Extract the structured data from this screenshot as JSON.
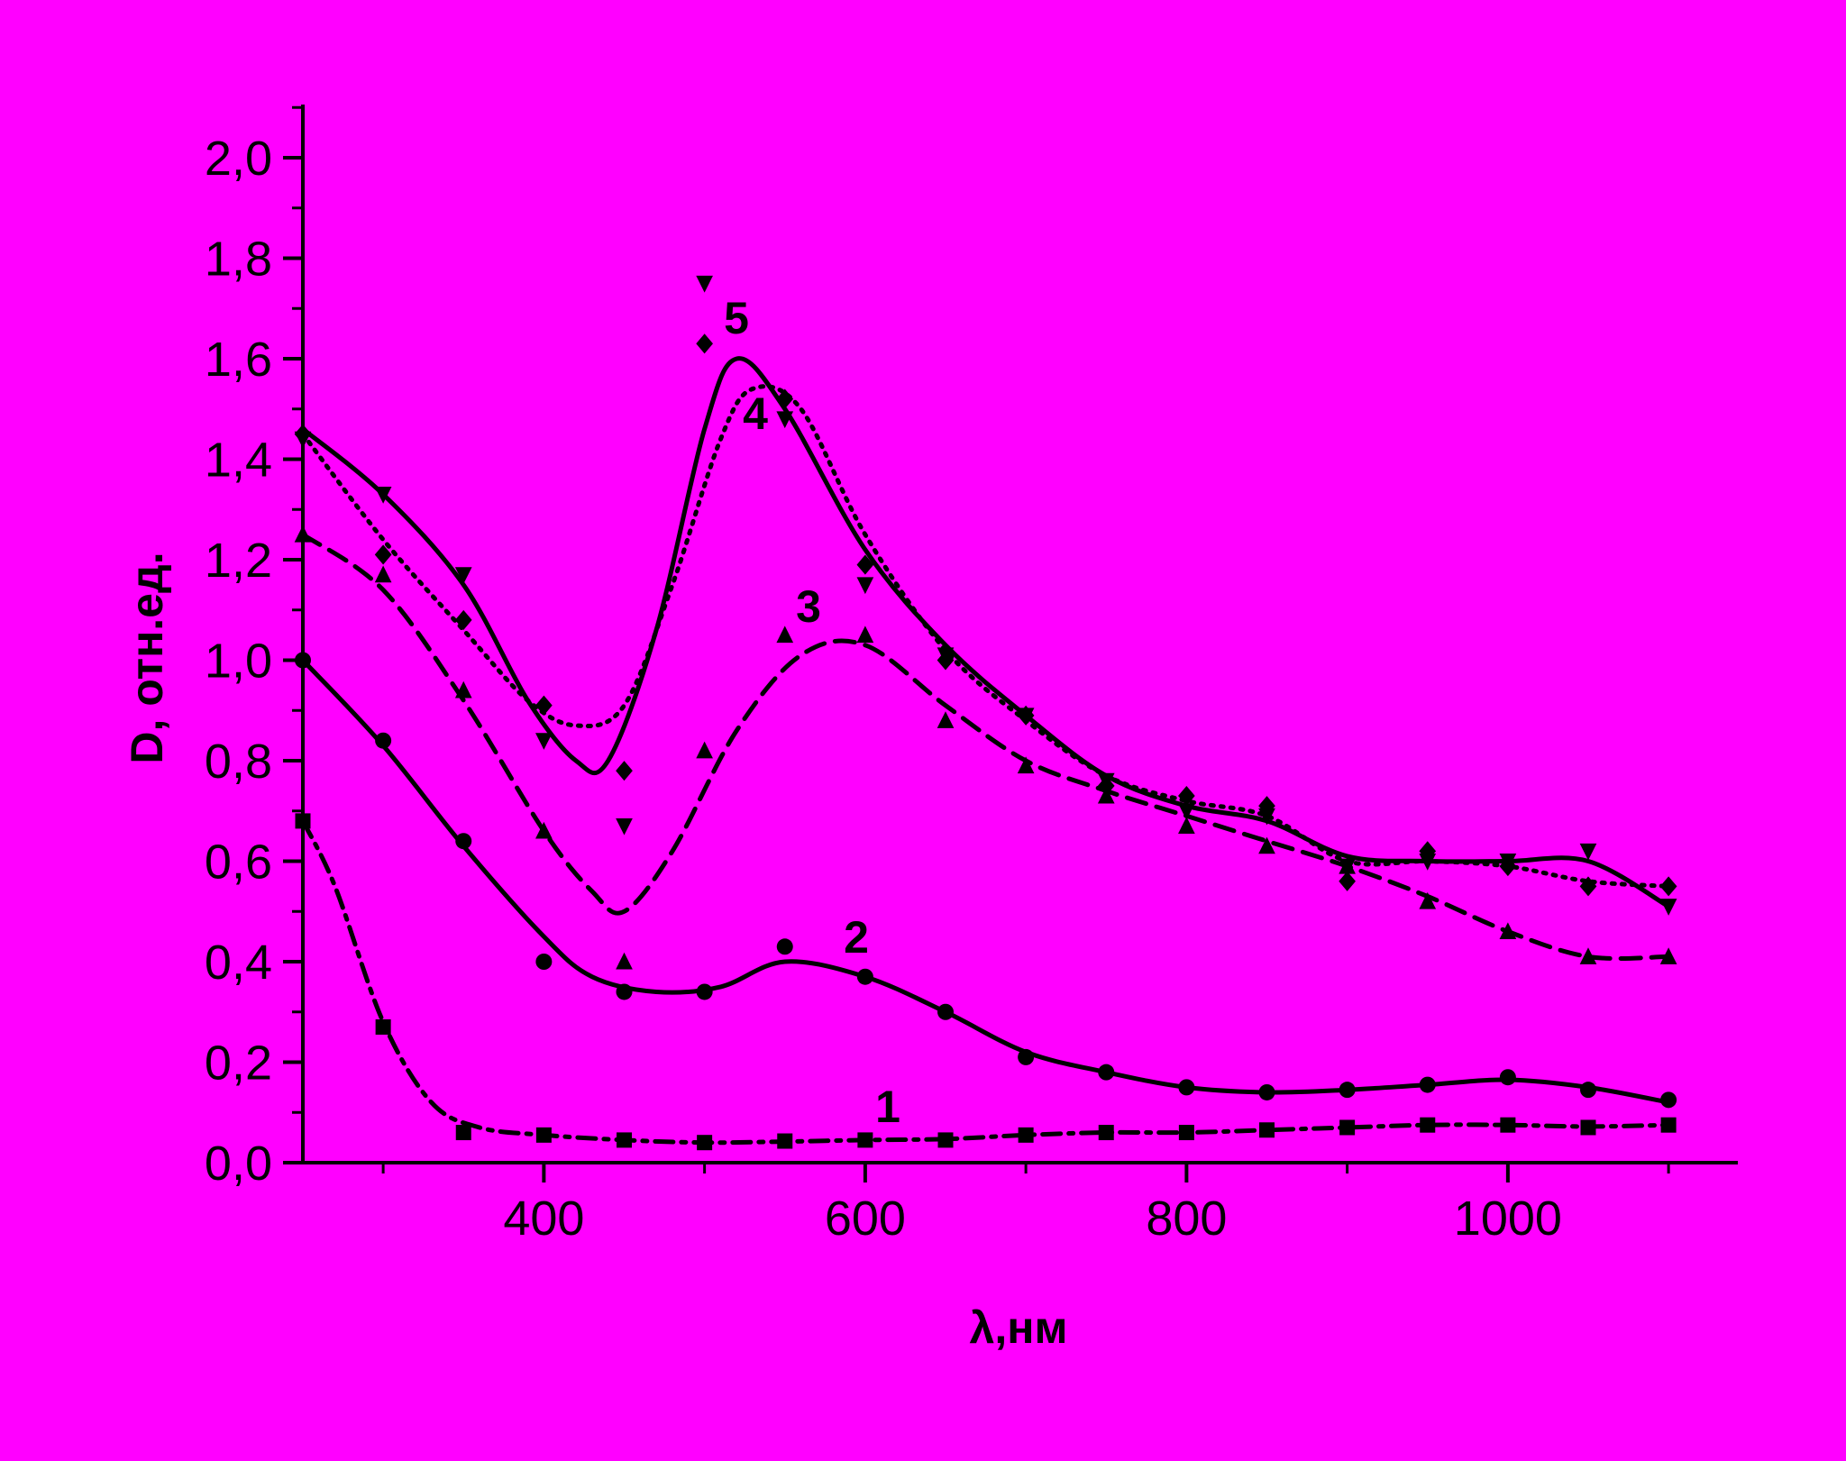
{
  "background_color": "#ff00ff",
  "ink_color": "#000000",
  "chart_data": {
    "type": "line",
    "xlabel": "λ,нм",
    "ylabel": "D, отн.ед.",
    "xlim": [
      250,
      1150
    ],
    "ylim": [
      0,
      2.1
    ],
    "x_ticks": [
      400,
      600,
      800,
      1000
    ],
    "x_tick_labels": [
      "400",
      "600",
      "800",
      "1000"
    ],
    "y_ticks": [
      0,
      0.2,
      0.4,
      0.6,
      0.8,
      1.0,
      1.2,
      1.4,
      1.6,
      1.8,
      2.0
    ],
    "y_tick_labels": [
      "0,0",
      "0,2",
      "0,4",
      "0,6",
      "0,8",
      "1,0",
      "1,2",
      "1,4",
      "1,6",
      "1,8",
      "2,0"
    ],
    "grid": false,
    "legend": "none",
    "series": [
      {
        "label": "1",
        "marker": "square",
        "line_style": "dash-dot",
        "points": [
          [
            250,
            0.68
          ],
          [
            300,
            0.27
          ],
          [
            350,
            0.06
          ],
          [
            400,
            0.055
          ],
          [
            450,
            0.045
          ],
          [
            500,
            0.04
          ],
          [
            550,
            0.043
          ],
          [
            600,
            0.045
          ],
          [
            650,
            0.045
          ],
          [
            700,
            0.055
          ],
          [
            750,
            0.06
          ],
          [
            800,
            0.06
          ],
          [
            850,
            0.065
          ],
          [
            900,
            0.07
          ],
          [
            950,
            0.075
          ],
          [
            1000,
            0.075
          ],
          [
            1050,
            0.07
          ],
          [
            1100,
            0.075
          ]
        ],
        "fit": [
          [
            250,
            0.68
          ],
          [
            270,
            0.55
          ],
          [
            300,
            0.28
          ],
          [
            330,
            0.12
          ],
          [
            360,
            0.07
          ],
          [
            400,
            0.055
          ],
          [
            450,
            0.045
          ],
          [
            500,
            0.04
          ],
          [
            550,
            0.042
          ],
          [
            600,
            0.045
          ],
          [
            650,
            0.047
          ],
          [
            700,
            0.055
          ],
          [
            750,
            0.06
          ],
          [
            800,
            0.06
          ],
          [
            850,
            0.065
          ],
          [
            900,
            0.07
          ],
          [
            950,
            0.075
          ],
          [
            1000,
            0.075
          ],
          [
            1050,
            0.072
          ],
          [
            1100,
            0.075
          ]
        ]
      },
      {
        "label": "2",
        "marker": "circle",
        "line_style": "solid",
        "points": [
          [
            250,
            1.0
          ],
          [
            300,
            0.84
          ],
          [
            350,
            0.64
          ],
          [
            400,
            0.4
          ],
          [
            450,
            0.34
          ],
          [
            500,
            0.34
          ],
          [
            550,
            0.43
          ],
          [
            600,
            0.37
          ],
          [
            650,
            0.3
          ],
          [
            700,
            0.21
          ],
          [
            750,
            0.18
          ],
          [
            800,
            0.15
          ],
          [
            850,
            0.14
          ],
          [
            900,
            0.145
          ],
          [
            950,
            0.155
          ],
          [
            1000,
            0.17
          ],
          [
            1050,
            0.145
          ],
          [
            1100,
            0.125
          ]
        ],
        "fit": [
          [
            250,
            1.0
          ],
          [
            300,
            0.83
          ],
          [
            350,
            0.63
          ],
          [
            400,
            0.45
          ],
          [
            430,
            0.37
          ],
          [
            470,
            0.34
          ],
          [
            510,
            0.35
          ],
          [
            550,
            0.4
          ],
          [
            600,
            0.37
          ],
          [
            650,
            0.3
          ],
          [
            700,
            0.22
          ],
          [
            750,
            0.18
          ],
          [
            800,
            0.15
          ],
          [
            850,
            0.14
          ],
          [
            900,
            0.145
          ],
          [
            950,
            0.155
          ],
          [
            1000,
            0.165
          ],
          [
            1050,
            0.15
          ],
          [
            1100,
            0.12
          ]
        ]
      },
      {
        "label": "3",
        "marker": "triangle-up",
        "line_style": "dashed",
        "points": [
          [
            250,
            1.25
          ],
          [
            300,
            1.17
          ],
          [
            350,
            0.94
          ],
          [
            400,
            0.66
          ],
          [
            450,
            0.4
          ],
          [
            500,
            0.82
          ],
          [
            550,
            1.05
          ],
          [
            600,
            1.05
          ],
          [
            650,
            0.88
          ],
          [
            700,
            0.79
          ],
          [
            750,
            0.73
          ],
          [
            800,
            0.67
          ],
          [
            850,
            0.63
          ],
          [
            900,
            0.59
          ],
          [
            950,
            0.52
          ],
          [
            1000,
            0.46
          ],
          [
            1050,
            0.41
          ],
          [
            1100,
            0.41
          ]
        ],
        "fit": [
          [
            250,
            1.25
          ],
          [
            300,
            1.14
          ],
          [
            350,
            0.92
          ],
          [
            400,
            0.66
          ],
          [
            430,
            0.54
          ],
          [
            450,
            0.5
          ],
          [
            480,
            0.62
          ],
          [
            520,
            0.86
          ],
          [
            560,
            1.01
          ],
          [
            600,
            1.03
          ],
          [
            650,
            0.91
          ],
          [
            700,
            0.8
          ],
          [
            750,
            0.74
          ],
          [
            800,
            0.69
          ],
          [
            850,
            0.64
          ],
          [
            900,
            0.59
          ],
          [
            950,
            0.53
          ],
          [
            1000,
            0.46
          ],
          [
            1050,
            0.41
          ],
          [
            1100,
            0.41
          ]
        ]
      },
      {
        "label": "4",
        "marker": "diamond",
        "line_style": "dotted",
        "points": [
          [
            250,
            1.45
          ],
          [
            300,
            1.21
          ],
          [
            350,
            1.08
          ],
          [
            400,
            0.91
          ],
          [
            450,
            0.78
          ],
          [
            500,
            1.63
          ],
          [
            550,
            1.52
          ],
          [
            600,
            1.19
          ],
          [
            650,
            1.0
          ],
          [
            700,
            0.89
          ],
          [
            750,
            0.75
          ],
          [
            800,
            0.73
          ],
          [
            850,
            0.71
          ],
          [
            900,
            0.56
          ],
          [
            950,
            0.62
          ],
          [
            1000,
            0.59
          ],
          [
            1050,
            0.55
          ],
          [
            1100,
            0.55
          ]
        ],
        "fit": [
          [
            250,
            1.45
          ],
          [
            300,
            1.24
          ],
          [
            350,
            1.06
          ],
          [
            390,
            0.92
          ],
          [
            420,
            0.87
          ],
          [
            450,
            0.91
          ],
          [
            480,
            1.15
          ],
          [
            510,
            1.44
          ],
          [
            530,
            1.54
          ],
          [
            560,
            1.5
          ],
          [
            600,
            1.25
          ],
          [
            650,
            1.02
          ],
          [
            700,
            0.88
          ],
          [
            750,
            0.77
          ],
          [
            800,
            0.72
          ],
          [
            850,
            0.69
          ],
          [
            900,
            0.6
          ],
          [
            950,
            0.6
          ],
          [
            1000,
            0.59
          ],
          [
            1050,
            0.56
          ],
          [
            1100,
            0.55
          ]
        ]
      },
      {
        "label": "5",
        "marker": "triangle-down",
        "line_style": "solid",
        "points": [
          [
            250,
            1.44
          ],
          [
            300,
            1.33
          ],
          [
            350,
            1.17
          ],
          [
            400,
            0.84
          ],
          [
            450,
            0.67
          ],
          [
            500,
            1.75
          ],
          [
            550,
            1.48
          ],
          [
            600,
            1.15
          ],
          [
            650,
            1.01
          ],
          [
            700,
            0.89
          ],
          [
            750,
            0.76
          ],
          [
            800,
            0.7
          ],
          [
            850,
            0.69
          ],
          [
            900,
            0.59
          ],
          [
            950,
            0.6
          ],
          [
            1000,
            0.6
          ],
          [
            1050,
            0.62
          ],
          [
            1100,
            0.51
          ]
        ],
        "fit": [
          [
            250,
            1.46
          ],
          [
            300,
            1.33
          ],
          [
            350,
            1.15
          ],
          [
            390,
            0.92
          ],
          [
            420,
            0.8
          ],
          [
            440,
            0.8
          ],
          [
            470,
            1.06
          ],
          [
            500,
            1.46
          ],
          [
            520,
            1.6
          ],
          [
            550,
            1.5
          ],
          [
            600,
            1.22
          ],
          [
            650,
            1.03
          ],
          [
            700,
            0.89
          ],
          [
            750,
            0.77
          ],
          [
            800,
            0.71
          ],
          [
            850,
            0.68
          ],
          [
            900,
            0.61
          ],
          [
            950,
            0.6
          ],
          [
            1000,
            0.6
          ],
          [
            1050,
            0.6
          ],
          [
            1100,
            0.51
          ]
        ]
      }
    ]
  }
}
